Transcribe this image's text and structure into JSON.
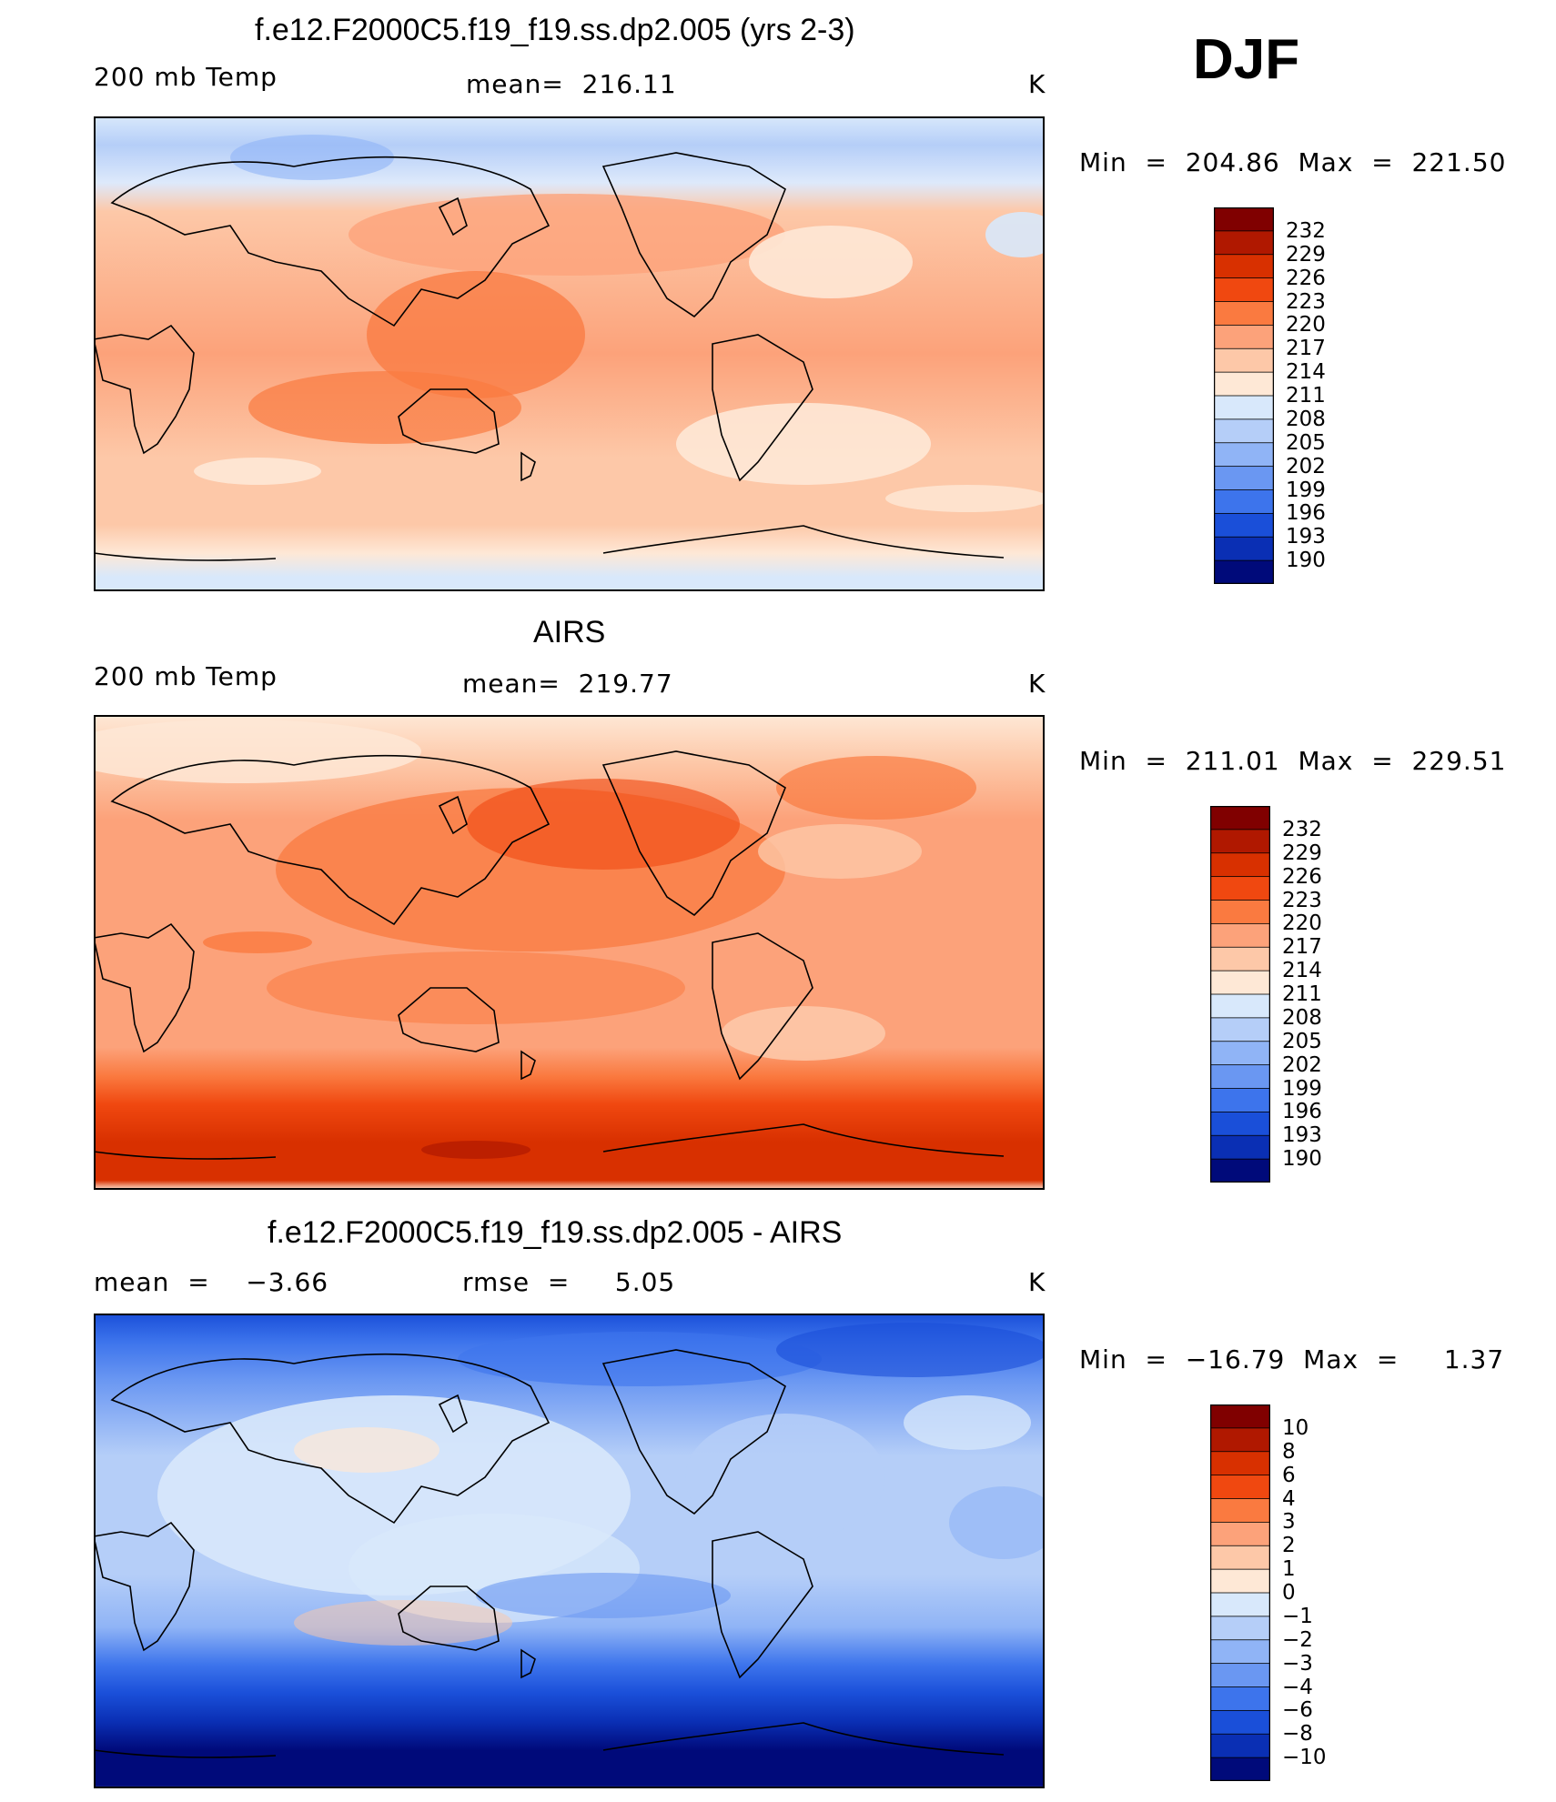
{
  "season_label": "DJF",
  "panels": [
    {
      "title": "f.e12.F2000C5.f19_f19.ss.dp2.005 (yrs 2-3)",
      "left_label": "200 mb Temp",
      "center_label": "mean=  216.11",
      "units": "K",
      "minmax": "Min  =  204.86  Max  =  221.50",
      "colorbar": {
        "labels": [
          "232",
          "229",
          "226",
          "223",
          "220",
          "217",
          "214",
          "211",
          "208",
          "205",
          "202",
          "199",
          "196",
          "193",
          "190"
        ],
        "colors": [
          "#800000",
          "#b01800",
          "#d83000",
          "#f04810",
          "#fa7a40",
          "#fca27a",
          "#fdc8a8",
          "#fee8d6",
          "#d8e8fb",
          "#b5cef8",
          "#90b4f6",
          "#6a97f2",
          "#3d74ec",
          "#1a4fd9",
          "#0a2fb4",
          "#000a7a"
        ]
      },
      "chart_data": {
        "type": "heatmap",
        "variable": "200 mb Temp",
        "units": "K",
        "mean": 216.11,
        "min": 204.86,
        "max": 221.5,
        "levels": [
          190,
          193,
          196,
          199,
          202,
          205,
          208,
          211,
          214,
          217,
          220,
          223,
          226,
          229,
          232
        ]
      }
    },
    {
      "title": "AIRS",
      "left_label": "200 mb Temp",
      "center_label": "mean=  219.77",
      "units": "K",
      "minmax": "Min  =  211.01  Max  =  229.51",
      "colorbar": {
        "labels": [
          "232",
          "229",
          "226",
          "223",
          "220",
          "217",
          "214",
          "211",
          "208",
          "205",
          "202",
          "199",
          "196",
          "193",
          "190"
        ],
        "colors": [
          "#800000",
          "#b01800",
          "#d83000",
          "#f04810",
          "#fa7a40",
          "#fca27a",
          "#fdc8a8",
          "#fee8d6",
          "#d8e8fb",
          "#b5cef8",
          "#90b4f6",
          "#6a97f2",
          "#3d74ec",
          "#1a4fd9",
          "#0a2fb4",
          "#000a7a"
        ]
      },
      "chart_data": {
        "type": "heatmap",
        "variable": "200 mb Temp",
        "units": "K",
        "mean": 219.77,
        "min": 211.01,
        "max": 229.51,
        "levels": [
          190,
          193,
          196,
          199,
          202,
          205,
          208,
          211,
          214,
          217,
          220,
          223,
          226,
          229,
          232
        ]
      }
    },
    {
      "title": "f.e12.F2000C5.f19_f19.ss.dp2.005 - AIRS",
      "left_label": "mean  =    −3.66",
      "center_label": "rmse  =     5.05",
      "units": "K",
      "minmax": "Min  =  −16.79  Max  =     1.37",
      "colorbar": {
        "labels": [
          "10",
          "8",
          "6",
          "4",
          "3",
          "2",
          "1",
          "0",
          "−1",
          "−2",
          "−3",
          "−4",
          "−6",
          "−8",
          "−10"
        ],
        "colors": [
          "#800000",
          "#b01800",
          "#d83000",
          "#f04810",
          "#fa7a40",
          "#fca27a",
          "#fdc8a8",
          "#fee8d6",
          "#d8e8fb",
          "#b5cef8",
          "#90b4f6",
          "#6a97f2",
          "#3d74ec",
          "#1a4fd9",
          "#0a2fb4",
          "#000a7a"
        ]
      },
      "chart_data": {
        "type": "heatmap",
        "variable": "difference",
        "units": "K",
        "mean": -3.66,
        "rmse": 5.05,
        "min": -16.79,
        "max": 1.37,
        "levels": [
          -10,
          -8,
          -6,
          -4,
          -3,
          -2,
          -1,
          0,
          1,
          2,
          3,
          4,
          6,
          8,
          10
        ]
      }
    }
  ]
}
